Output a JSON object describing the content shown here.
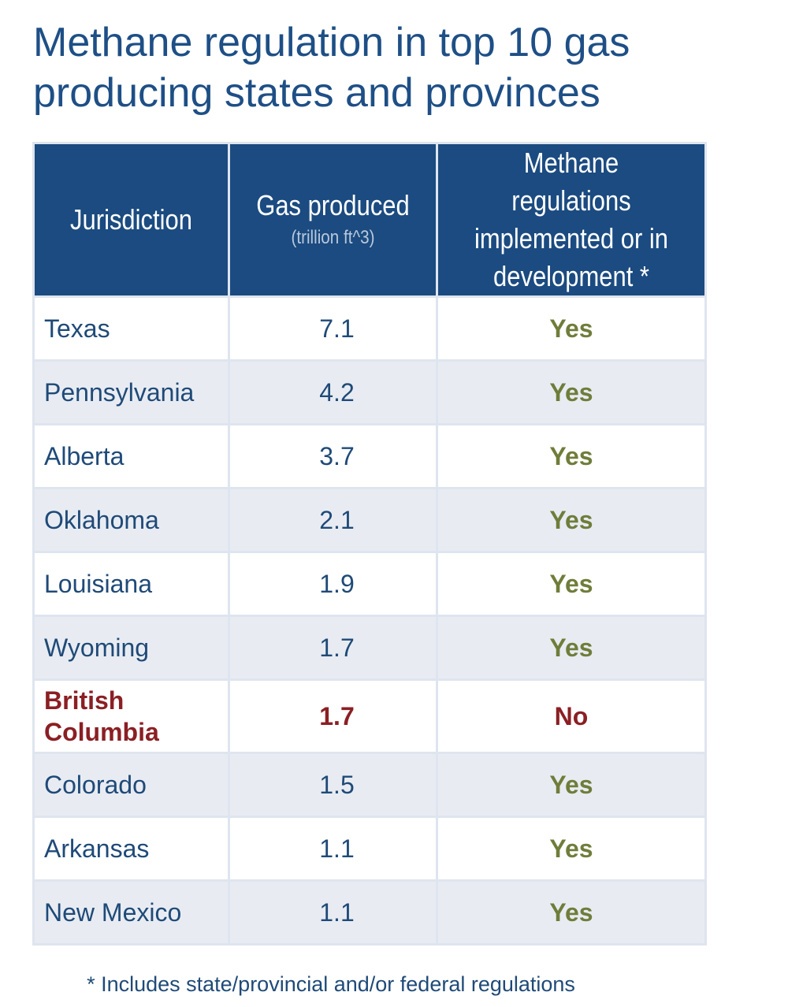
{
  "chart_data": {
    "type": "table",
    "title_lines": [
      "Methane regulation in top 10 gas",
      "producing states and provinces"
    ],
    "headers": {
      "jurisdiction": "Jurisdiction",
      "gas_main": "Gas produced",
      "gas_unit": "(trillion ft^3)",
      "methane_lines": [
        "Methane regulations",
        "implemented or in",
        "development *"
      ]
    },
    "rows": [
      {
        "name": "Texas",
        "gas": "7.1",
        "regulated": "Yes"
      },
      {
        "name": "Pennsylvania",
        "gas": "4.2",
        "regulated": "Yes"
      },
      {
        "name": "Alberta",
        "gas": "3.7",
        "regulated": "Yes"
      },
      {
        "name": "Oklahoma",
        "gas": "2.1",
        "regulated": "Yes"
      },
      {
        "name": "Louisiana",
        "gas": "1.9",
        "regulated": "Yes"
      },
      {
        "name": "Wyoming",
        "gas": "1.7",
        "regulated": "Yes"
      },
      {
        "name_lines": [
          "British",
          "Columbia"
        ],
        "gas": "1.7",
        "regulated": "No"
      },
      {
        "name": "Colorado",
        "gas": "1.5",
        "regulated": "Yes"
      },
      {
        "name": "Arkansas",
        "gas": "1.1",
        "regulated": "Yes"
      },
      {
        "name": "New Mexico",
        "gas": "1.1",
        "regulated": "Yes"
      }
    ],
    "footnote": "* Includes state/provincial and/or federal regulations"
  },
  "colors": {
    "title": "#1e4f86",
    "header_bg": "#1b4b80",
    "header_subtext": "#b9c8dc",
    "body_text": "#1f4a78",
    "yes": "#6f7d3a",
    "highlight": "#8b1f24",
    "stripe": "#e8ecf2",
    "border": "#dfe5ef"
  }
}
